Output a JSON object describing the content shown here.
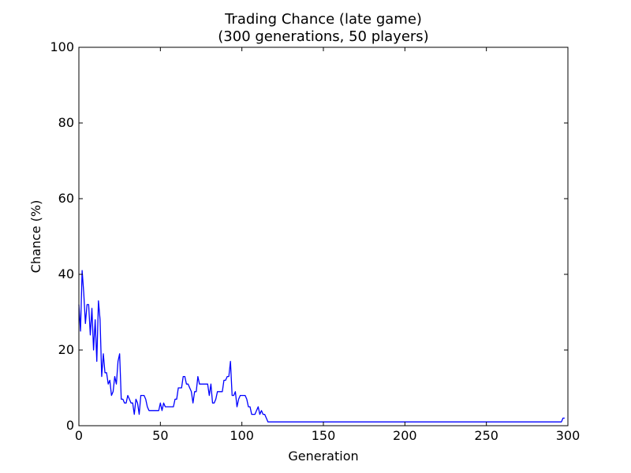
{
  "chart_data": {
    "type": "line",
    "title": "Trading Chance (late game)",
    "subtitle": "(300 generations, 50 players)",
    "xlabel": "Generation",
    "ylabel": "Chance (%)",
    "xlim": [
      0,
      300
    ],
    "ylim": [
      0,
      100
    ],
    "xticks": [
      0,
      50,
      100,
      150,
      200,
      250,
      300
    ],
    "yticks": [
      0,
      20,
      40,
      60,
      80,
      100
    ],
    "grid": false,
    "legend": "none",
    "line_color": "#0000ff",
    "series": [
      {
        "x": [
          0,
          1,
          2,
          3,
          4,
          5,
          6,
          7,
          8,
          9,
          10,
          11,
          12,
          13,
          14,
          15,
          16,
          17,
          18,
          19,
          20,
          21,
          22,
          23,
          24,
          25,
          26,
          27,
          28,
          29,
          30,
          31,
          32,
          33,
          34,
          35,
          36,
          37,
          38,
          39,
          40,
          41,
          42,
          43,
          44,
          45,
          46,
          47,
          48,
          49,
          50,
          51,
          52,
          53,
          54,
          55,
          56,
          57,
          58,
          59,
          60,
          61,
          62,
          63,
          64,
          65,
          66,
          67,
          68,
          69,
          70,
          71,
          72,
          73,
          74,
          75,
          76,
          77,
          78,
          79,
          80,
          81,
          82,
          83,
          84,
          85,
          86,
          87,
          88,
          89,
          90,
          91,
          92,
          93,
          94,
          95,
          96,
          97,
          98,
          99,
          100,
          101,
          102,
          103,
          104,
          105,
          106,
          107,
          108,
          109,
          110,
          111,
          112,
          113,
          114,
          115,
          116,
          117,
          296,
          297,
          298
        ],
        "values": [
          32,
          25,
          41,
          35,
          27,
          32,
          32,
          24,
          31,
          20,
          28,
          17,
          33,
          28,
          13,
          19,
          14,
          14,
          11,
          12,
          8,
          9,
          13,
          11,
          17,
          19,
          7,
          7,
          6,
          6,
          8,
          7,
          6,
          6,
          3,
          7,
          6,
          3,
          8,
          8,
          8,
          7,
          5,
          4,
          4,
          4,
          4,
          4,
          4,
          4,
          6,
          4,
          6,
          5,
          5,
          5,
          5,
          5,
          5,
          7,
          7,
          10,
          10,
          10,
          13,
          13,
          11,
          11,
          10,
          9,
          6,
          9,
          9,
          13,
          11,
          11,
          11,
          11,
          11,
          11,
          8,
          11,
          6,
          6,
          7,
          9,
          9,
          9,
          9,
          12,
          12,
          13,
          13,
          17,
          8,
          8,
          9,
          5,
          7,
          8,
          8,
          8,
          8,
          7,
          5,
          5,
          3,
          3,
          3,
          4,
          5,
          3,
          4,
          3,
          3,
          2,
          1,
          1,
          1,
          2,
          2
        ]
      }
    ]
  }
}
